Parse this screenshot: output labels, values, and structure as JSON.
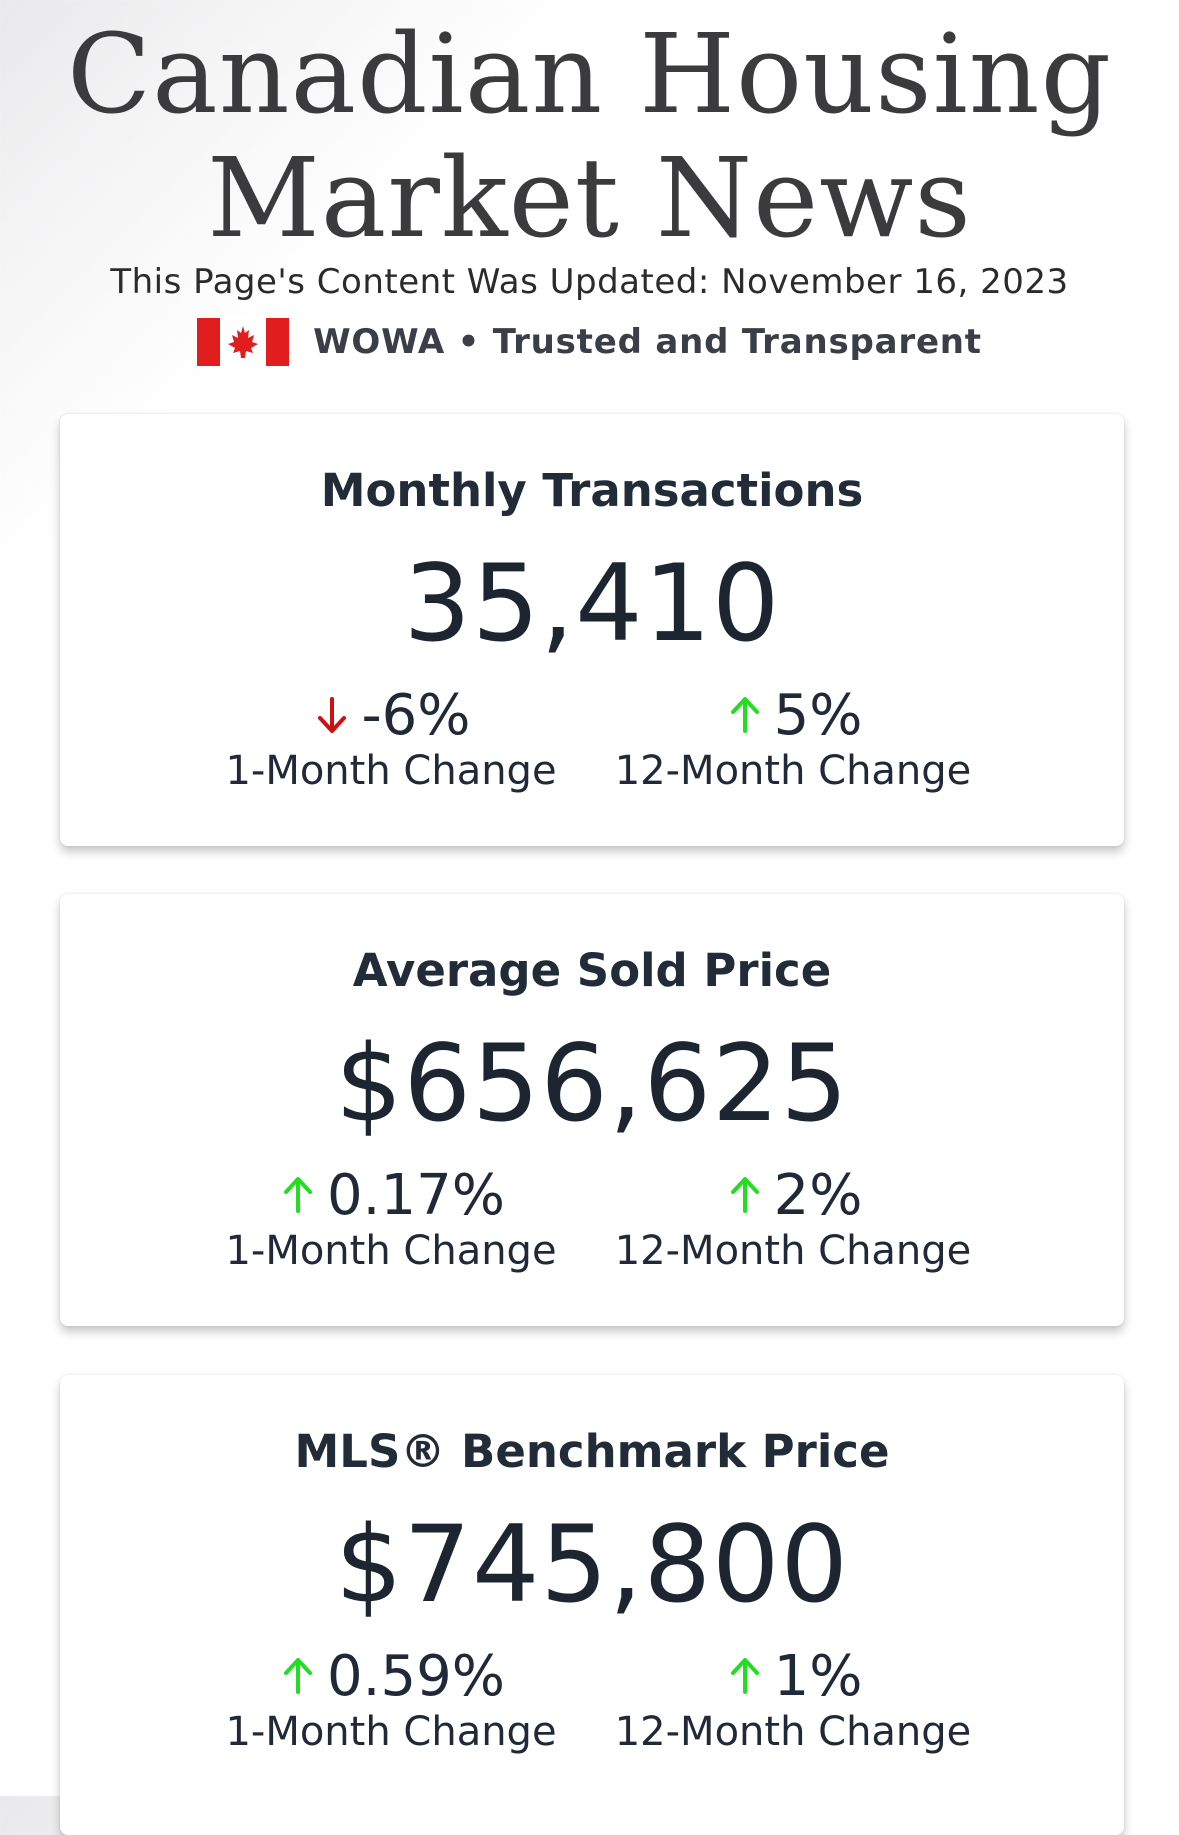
{
  "header": {
    "title_line1": "Canadian Housing",
    "title_line2": "Market News",
    "updated": "This Page's Content Was Updated: November 16, 2023",
    "brand_text": "WOWA • Trusted and Transparent"
  },
  "colors": {
    "up": "#22dd22",
    "down": "#cc1111",
    "flag_red": "#e11d1d"
  },
  "cards": [
    {
      "title": "Monthly Transactions",
      "value": "35,410",
      "one_month": {
        "direction": "down",
        "value": "-6%",
        "label": "1-Month Change"
      },
      "twelve_month": {
        "direction": "up",
        "value": "5%",
        "label": "12-Month Change"
      }
    },
    {
      "title": "Average Sold Price",
      "value": "$656,625",
      "one_month": {
        "direction": "up",
        "value": "0.17%",
        "label": "1-Month Change"
      },
      "twelve_month": {
        "direction": "up",
        "value": "2%",
        "label": "12-Month Change"
      }
    },
    {
      "title": "MLS® Benchmark Price",
      "value": "$745,800",
      "one_month": {
        "direction": "up",
        "value": "0.59%",
        "label": "1-Month Change"
      },
      "twelve_month": {
        "direction": "up",
        "value": "1%",
        "label": "12-Month Change"
      }
    }
  ]
}
